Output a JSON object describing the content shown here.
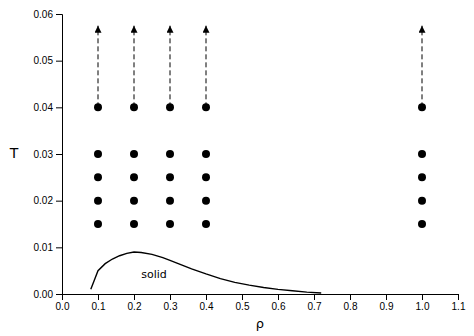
{
  "chart_data": {
    "type": "scatter",
    "title": "",
    "xlabel": "ρ",
    "ylabel": "T",
    "xlim": [
      0.0,
      1.1
    ],
    "ylim": [
      0.0,
      0.06
    ],
    "xticks": [
      {
        "value": 0.0,
        "label": "0.0"
      },
      0.1,
      0.2,
      0.3,
      0.4,
      0.5,
      0.6,
      0.7,
      0.8,
      0.9,
      {
        "value": 1.0,
        "label": "1.0"
      },
      1.1
    ],
    "yticks": [
      {
        "value": 0.0,
        "label": "0.00"
      },
      0.01,
      0.02,
      0.03,
      0.04,
      0.05,
      0.06
    ],
    "grid": false,
    "series": [
      {
        "type": "line",
        "color": "black",
        "line_style": "solid",
        "x": [
          0.08,
          0.09,
          0.1,
          0.12,
          0.14,
          0.16,
          0.18,
          0.2,
          0.22,
          0.25,
          0.28,
          0.3,
          0.33,
          0.36,
          0.4,
          0.44,
          0.48,
          0.52,
          0.56,
          0.6,
          0.64,
          0.68,
          0.72
        ],
        "values": [
          0.001,
          0.003,
          0.005,
          0.0065,
          0.0075,
          0.0082,
          0.0087,
          0.009,
          0.0089,
          0.0085,
          0.0078,
          0.0072,
          0.0063,
          0.0054,
          0.0043,
          0.0033,
          0.0025,
          0.0019,
          0.0014,
          0.001,
          0.0007,
          0.0004,
          0.0002
        ]
      },
      {
        "type": "scatter",
        "color": "black",
        "marker": "circle",
        "x": [
          0.1,
          0.1,
          0.1,
          0.1,
          0.1,
          0.2,
          0.2,
          0.2,
          0.2,
          0.2,
          0.3,
          0.3,
          0.3,
          0.3,
          0.3,
          0.4,
          0.4,
          0.4,
          0.4,
          0.4,
          1.0,
          1.0,
          1.0,
          1.0,
          1.0
        ],
        "values": [
          0.015,
          0.02,
          0.025,
          0.03,
          0.04,
          0.015,
          0.02,
          0.025,
          0.03,
          0.04,
          0.015,
          0.02,
          0.025,
          0.03,
          0.04,
          0.015,
          0.02,
          0.025,
          0.03,
          0.04,
          0.015,
          0.02,
          0.025,
          0.03,
          0.04
        ]
      },
      {
        "type": "arrow",
        "color": "black",
        "line_style": "dashed",
        "x": [
          0.1,
          0.1
        ],
        "values": [
          0.04,
          0.0575
        ]
      },
      {
        "type": "arrow",
        "color": "black",
        "line_style": "dashed",
        "x": [
          0.2,
          0.2
        ],
        "values": [
          0.04,
          0.0575
        ]
      },
      {
        "type": "arrow",
        "color": "black",
        "line_style": "dashed",
        "x": [
          0.3,
          0.3
        ],
        "values": [
          0.04,
          0.0575
        ]
      },
      {
        "type": "arrow",
        "color": "black",
        "line_style": "dashed",
        "x": [
          0.4,
          0.4
        ],
        "values": [
          0.04,
          0.0575
        ]
      },
      {
        "type": "arrow",
        "color": "black",
        "line_style": "dashed",
        "x": [
          1.0,
          1.0
        ],
        "values": [
          0.04,
          0.0575
        ]
      }
    ],
    "annotations": [
      {
        "text": "solid",
        "x": 0.22,
        "y": 0.004
      }
    ]
  }
}
